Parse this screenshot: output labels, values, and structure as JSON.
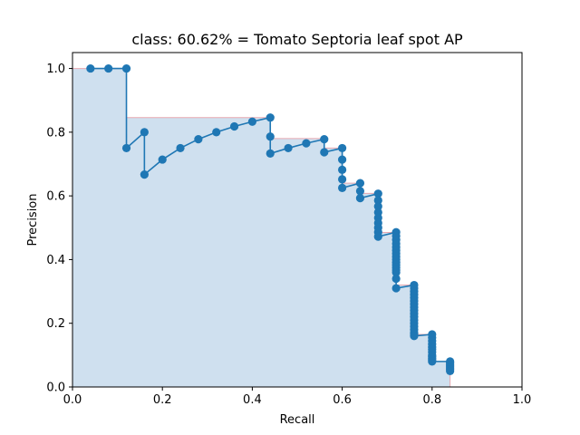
{
  "chart_data": {
    "type": "line",
    "title": "class: 60.62% = Tomato Septoria leaf spot AP",
    "xlabel": "Recall",
    "ylabel": "Precision",
    "xlim": [
      0.0,
      1.0
    ],
    "ylim": [
      0.0,
      1.05
    ],
    "x_ticks": [
      "0.0",
      "0.2",
      "0.4",
      "0.6",
      "0.8",
      "1.0"
    ],
    "y_ticks": [
      "0.0",
      "0.2",
      "0.4",
      "0.6",
      "0.8",
      "1.0"
    ],
    "grid": false,
    "legend": "none",
    "colors": {
      "line": "#1f77b4",
      "area": "#cfe0ef",
      "envelope": "#e8a8b0"
    },
    "precision_envelope": {
      "x": [
        0.0,
        0.12,
        0.12,
        0.44,
        0.44,
        0.56,
        0.56,
        0.6,
        0.6,
        0.64,
        0.64,
        0.68,
        0.68,
        0.72,
        0.72,
        0.76,
        0.76,
        0.8,
        0.8,
        0.84,
        0.84
      ],
      "y": [
        1.0,
        1.0,
        0.846,
        0.846,
        0.78,
        0.78,
        0.75,
        0.75,
        0.64,
        0.64,
        0.608,
        0.608,
        0.485,
        0.485,
        0.32,
        0.32,
        0.165,
        0.165,
        0.08,
        0.08,
        0.0
      ]
    },
    "series": [
      {
        "x": [
          0.04,
          0.08,
          0.12,
          0.12,
          0.16,
          0.16,
          0.2,
          0.24,
          0.28,
          0.32,
          0.36,
          0.4,
          0.44,
          0.44,
          0.44,
          0.48,
          0.52,
          0.56,
          0.56,
          0.6,
          0.6,
          0.6,
          0.6,
          0.6,
          0.64,
          0.64,
          0.64,
          0.68,
          0.68,
          0.68,
          0.68,
          0.68,
          0.68,
          0.68,
          0.68,
          0.68,
          0.72,
          0.72,
          0.72,
          0.72,
          0.72,
          0.72,
          0.72,
          0.72,
          0.72,
          0.72,
          0.72,
          0.72,
          0.72,
          0.72,
          0.72,
          0.72,
          0.76,
          0.76,
          0.76,
          0.76,
          0.76,
          0.76,
          0.76,
          0.76,
          0.76,
          0.76,
          0.76,
          0.76,
          0.76,
          0.76,
          0.76,
          0.76,
          0.76,
          0.76,
          0.8,
          0.8,
          0.8,
          0.8,
          0.8,
          0.8,
          0.8,
          0.8,
          0.8,
          0.8,
          0.8,
          0.8,
          0.84,
          0.84,
          0.84,
          0.84,
          0.84,
          0.84,
          0.84
        ],
        "values": [
          1.0,
          1.0,
          1.0,
          0.75,
          0.8,
          0.667,
          0.714,
          0.75,
          0.778,
          0.8,
          0.818,
          0.833,
          0.846,
          0.786,
          0.733,
          0.75,
          0.765,
          0.778,
          0.737,
          0.75,
          0.714,
          0.682,
          0.652,
          0.625,
          0.64,
          0.615,
          0.593,
          0.607,
          0.586,
          0.567,
          0.548,
          0.531,
          0.515,
          0.5,
          0.486,
          0.472,
          0.486,
          0.474,
          0.462,
          0.45,
          0.439,
          0.429,
          0.419,
          0.409,
          0.4,
          0.391,
          0.383,
          0.375,
          0.367,
          0.36,
          0.34,
          0.31,
          0.32,
          0.31,
          0.3,
          0.29,
          0.28,
          0.27,
          0.26,
          0.25,
          0.24,
          0.23,
          0.22,
          0.21,
          0.2,
          0.19,
          0.18,
          0.17,
          0.165,
          0.16,
          0.165,
          0.155,
          0.145,
          0.135,
          0.125,
          0.118,
          0.11,
          0.1,
          0.095,
          0.09,
          0.085,
          0.08,
          0.08,
          0.075,
          0.07,
          0.065,
          0.06,
          0.055,
          0.05
        ]
      }
    ]
  }
}
